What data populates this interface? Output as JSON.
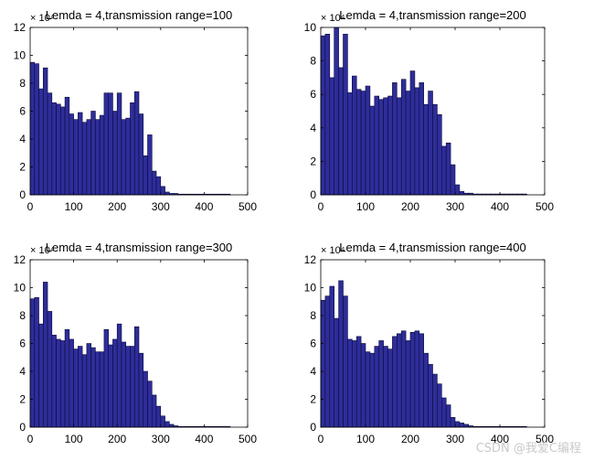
{
  "watermark": "CSDN @我爱C编程",
  "colors": {
    "bar_fill": "#2e2d9a",
    "bar_edge": "#0a0a3a",
    "axes": "#000000",
    "background": "#ffffff"
  },
  "chart_data": [
    {
      "type": "bar",
      "title": "Lemda = 4,transmission range=100",
      "exponent_label": "× 10⁴",
      "xlim": [
        0,
        500
      ],
      "ylim": [
        0,
        12
      ],
      "xticks": [
        0,
        100,
        200,
        300,
        400,
        500
      ],
      "yticks": [
        0,
        2,
        4,
        6,
        8,
        10,
        12
      ],
      "bin_width": 10,
      "bin_starts": [
        0,
        10,
        20,
        30,
        40,
        50,
        60,
        70,
        80,
        90,
        100,
        110,
        120,
        130,
        140,
        150,
        160,
        170,
        180,
        190,
        200,
        210,
        220,
        230,
        240,
        250,
        260,
        270,
        280,
        290,
        300,
        310,
        320,
        330,
        340,
        350,
        360,
        370,
        380,
        390,
        400,
        410,
        420,
        430,
        440,
        450
      ],
      "values": [
        9.5,
        9.4,
        7.6,
        9.1,
        7.3,
        6.6,
        6.5,
        6.3,
        7.0,
        5.8,
        5.4,
        5.9,
        5.2,
        5.4,
        6.0,
        5.4,
        5.7,
        7.3,
        7.3,
        6.0,
        7.3,
        5.4,
        5.5,
        6.6,
        7.4,
        5.8,
        2.8,
        4.3,
        1.7,
        1.3,
        0.6,
        0.2,
        0.1,
        0.1,
        0.05,
        0.05,
        0.05,
        0.05,
        0.05,
        0.05,
        0.05,
        0.05,
        0.05,
        0.05,
        0.05,
        0.05
      ]
    },
    {
      "type": "bar",
      "title": "Lemda = 4,transmission range=200",
      "exponent_label": "× 10⁴",
      "xlim": [
        0,
        500
      ],
      "ylim": [
        0,
        10
      ],
      "xticks": [
        0,
        100,
        200,
        300,
        400,
        500
      ],
      "yticks": [
        0,
        2,
        4,
        6,
        8,
        10
      ],
      "bin_width": 10,
      "bin_starts": [
        0,
        10,
        20,
        30,
        40,
        50,
        60,
        70,
        80,
        90,
        100,
        110,
        120,
        130,
        140,
        150,
        160,
        170,
        180,
        190,
        200,
        210,
        220,
        230,
        240,
        250,
        260,
        270,
        280,
        290,
        300,
        310,
        320,
        330,
        340,
        350,
        360,
        370,
        380,
        390,
        400,
        410,
        420,
        430,
        440,
        450
      ],
      "values": [
        9.5,
        9.6,
        7.0,
        10.0,
        7.6,
        9.6,
        6.1,
        7.1,
        6.3,
        6.2,
        6.5,
        5.3,
        5.9,
        5.7,
        5.8,
        5.9,
        6.7,
        5.8,
        6.9,
        6.2,
        7.4,
        6.4,
        6.7,
        5.4,
        6.2,
        5.4,
        4.8,
        2.9,
        3.1,
        1.8,
        0.6,
        0.2,
        0.1,
        0.1,
        0.05,
        0.05,
        0.05,
        0.05,
        0.05,
        0.05,
        0.05,
        0.05,
        0.05,
        0.05,
        0.05,
        0.05
      ]
    },
    {
      "type": "bar",
      "title": "Lemda = 4,transmission range=300",
      "exponent_label": "× 10⁴",
      "xlim": [
        0,
        500
      ],
      "ylim": [
        0,
        12
      ],
      "xticks": [
        0,
        100,
        200,
        300,
        400,
        500
      ],
      "yticks": [
        0,
        2,
        4,
        6,
        8,
        10,
        12
      ],
      "bin_width": 10,
      "bin_starts": [
        0,
        10,
        20,
        30,
        40,
        50,
        60,
        70,
        80,
        90,
        100,
        110,
        120,
        130,
        140,
        150,
        160,
        170,
        180,
        190,
        200,
        210,
        220,
        230,
        240,
        250,
        260,
        270,
        280,
        290,
        300,
        310,
        320,
        330,
        340,
        350,
        360,
        370,
        380,
        390,
        400,
        410,
        420,
        430,
        440,
        450
      ],
      "values": [
        9.2,
        9.3,
        7.4,
        10.4,
        8.3,
        6.6,
        6.3,
        6.2,
        7.0,
        6.3,
        5.6,
        5.8,
        5.2,
        6.0,
        5.7,
        5.4,
        5.4,
        7.0,
        5.9,
        6.3,
        7.4,
        6.1,
        5.8,
        5.8,
        7.2,
        5.3,
        4.0,
        3.3,
        2.3,
        1.5,
        0.8,
        0.4,
        0.2,
        0.1,
        0.05,
        0.05,
        0.05,
        0.05,
        0.05,
        0.05,
        0.05,
        0.05,
        0.05,
        0.05,
        0.05,
        0.05
      ]
    },
    {
      "type": "bar",
      "title": "Lemda = 4,transmission range=400",
      "exponent_label": "× 10⁴",
      "xlim": [
        0,
        500
      ],
      "ylim": [
        0,
        12
      ],
      "xticks": [
        0,
        100,
        200,
        300,
        400,
        500
      ],
      "yticks": [
        0,
        2,
        4,
        6,
        8,
        10,
        12
      ],
      "bin_width": 10,
      "bin_starts": [
        0,
        10,
        20,
        30,
        40,
        50,
        60,
        70,
        80,
        90,
        100,
        110,
        120,
        130,
        140,
        150,
        160,
        170,
        180,
        190,
        200,
        210,
        220,
        230,
        240,
        250,
        260,
        270,
        280,
        290,
        300,
        310,
        320,
        330,
        340,
        350,
        360,
        370,
        380,
        390,
        400,
        410,
        420,
        430,
        440,
        450
      ],
      "values": [
        9.1,
        9.4,
        10.1,
        7.8,
        10.5,
        9.4,
        6.3,
        6.2,
        6.5,
        6.0,
        5.4,
        5.3,
        5.8,
        6.2,
        5.8,
        5.6,
        6.5,
        6.7,
        6.9,
        6.2,
        6.8,
        6.9,
        6.7,
        5.3,
        4.5,
        3.8,
        3.1,
        2.1,
        1.6,
        0.7,
        0.4,
        0.3,
        0.2,
        0.1,
        0.05,
        0.05,
        0.05,
        0.05,
        0.05,
        0.05,
        0.05,
        0.05,
        0.05,
        0.05,
        0.05,
        0.05
      ]
    }
  ]
}
